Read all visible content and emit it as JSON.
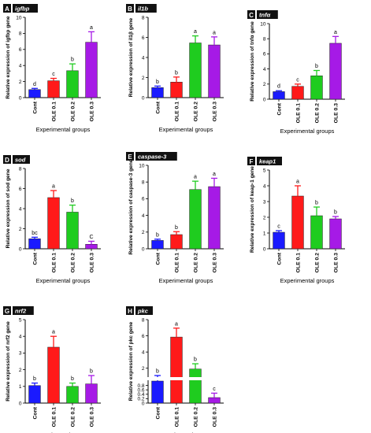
{
  "figure": {
    "common_xlabel": "Experimental groups"
  },
  "chart_data": [
    {
      "panel": "A",
      "gene_label": "igfbp",
      "type": "bar",
      "ylabel": "Relative expression of igfbp gene",
      "xlabel": "Experimental groups",
      "categories": [
        "Cont",
        "OLE 0.1",
        "OLE 0.2",
        "OLE 0.3"
      ],
      "values": [
        1.0,
        2.1,
        3.35,
        6.9
      ],
      "errors": [
        0.15,
        0.3,
        0.85,
        1.3
      ],
      "letters": [
        "d",
        "c",
        "b",
        "a"
      ],
      "ylim": [
        0,
        10
      ],
      "yticks": [
        0,
        2,
        4,
        6,
        8,
        10
      ],
      "colors": [
        "#1a1aff",
        "#ff1a1a",
        "#1fcc1f",
        "#a61ae6"
      ]
    },
    {
      "panel": "B",
      "gene_label": "il1b",
      "type": "bar",
      "ylabel": "Relative expression of il1β gene",
      "xlabel": "Experimental groups",
      "categories": [
        "Cont",
        "OLE 0.1",
        "OLE 0.2",
        "OLE 0.3"
      ],
      "values": [
        1.0,
        1.55,
        5.45,
        5.25
      ],
      "errors": [
        0.15,
        0.5,
        0.7,
        0.8
      ],
      "letters": [
        "b",
        "b",
        "a",
        "a"
      ],
      "ylim": [
        0,
        8
      ],
      "yticks": [
        0,
        2,
        4,
        6,
        8
      ],
      "colors": [
        "#1a1aff",
        "#ff1a1a",
        "#1fcc1f",
        "#a61ae6"
      ]
    },
    {
      "panel": "C",
      "gene_label": "tnfα",
      "type": "bar",
      "ylabel": "Relative expression of tnfα gene",
      "xlabel": "Experimental groups",
      "categories": [
        "Cont",
        "OLE 0.1",
        "OLE 0.2",
        "OLE 0.3"
      ],
      "values": [
        1.0,
        1.7,
        3.1,
        7.4
      ],
      "errors": [
        0.12,
        0.3,
        0.7,
        0.9
      ],
      "letters": [
        "d",
        "c",
        "b",
        "a"
      ],
      "ylim": [
        0,
        10
      ],
      "yticks": [
        0,
        2,
        4,
        6,
        8,
        10
      ],
      "colors": [
        "#1a1aff",
        "#ff1a1a",
        "#1fcc1f",
        "#a61ae6"
      ]
    },
    {
      "panel": "D",
      "gene_label": "sod",
      "type": "bar",
      "ylabel": "Relative expression of sod gene",
      "xlabel": "Experimental groups",
      "categories": [
        "Cont",
        "OLE 0.1",
        "OLE 0.2",
        "OLE 0.3"
      ],
      "values": [
        1.0,
        5.1,
        3.65,
        0.45
      ],
      "errors": [
        0.15,
        0.7,
        0.7,
        0.3
      ],
      "letters": [
        "bc",
        "a",
        "b",
        "C"
      ],
      "ylim": [
        0,
        8
      ],
      "yticks": [
        0,
        2,
        4,
        6,
        8
      ],
      "colors": [
        "#1a1aff",
        "#ff1a1a",
        "#1fcc1f",
        "#a61ae6"
      ]
    },
    {
      "panel": "E",
      "gene_label": "caspase-3",
      "type": "bar",
      "ylabel": "Relative expression of caspase-3 gene",
      "xlabel": "Experimental groups",
      "categories": [
        "Cont",
        "OLE 0.1",
        "OLE 0.2",
        "OLE 0.3"
      ],
      "values": [
        1.0,
        1.7,
        7.1,
        7.45
      ],
      "errors": [
        0.15,
        0.35,
        1.0,
        1.0
      ],
      "letters": [
        "b",
        "b",
        "a",
        "a"
      ],
      "ylim": [
        0,
        10
      ],
      "yticks": [
        0,
        2,
        4,
        6,
        8,
        10
      ],
      "colors": [
        "#1a1aff",
        "#ff1a1a",
        "#1fcc1f",
        "#a61ae6"
      ]
    },
    {
      "panel": "F",
      "gene_label": "keap1",
      "type": "bar",
      "ylabel": "Relative expression of keap-1 gene",
      "xlabel": "Experimental groups",
      "categories": [
        "Cont",
        "OLE 0.1",
        "OLE 0.2",
        "OLE 0.3"
      ],
      "values": [
        1.05,
        3.35,
        2.1,
        1.9
      ],
      "errors": [
        0.1,
        0.65,
        0.55,
        0.15
      ],
      "letters": [
        "c",
        "a",
        "b",
        "b"
      ],
      "ylim": [
        0,
        5
      ],
      "yticks": [
        0,
        1,
        2,
        3,
        4,
        5
      ],
      "colors": [
        "#1a1aff",
        "#ff1a1a",
        "#1fcc1f",
        "#a61ae6"
      ]
    },
    {
      "panel": "G",
      "gene_label": "nrf2",
      "type": "bar",
      "ylabel": "Relative expression of nrf2 gene",
      "xlabel": "Experimental groups",
      "categories": [
        "Cont",
        "OLE 0.1",
        "OLE 0.2",
        "OLE 0.3"
      ],
      "values": [
        1.05,
        3.35,
        1.0,
        1.15
      ],
      "errors": [
        0.15,
        0.65,
        0.2,
        0.5
      ],
      "letters": [
        "b",
        "a",
        "b",
        "b"
      ],
      "ylim": [
        0,
        5
      ],
      "yticks": [
        0,
        1,
        2,
        3,
        4,
        5
      ],
      "colors": [
        "#1a1aff",
        "#ff1a1a",
        "#1fcc1f",
        "#a61ae6"
      ]
    },
    {
      "panel": "H",
      "gene_label": "pkc",
      "type": "bar",
      "ylabel": "Relative expression of pkc gene",
      "xlabel": "Experimental groups",
      "categories": [
        "Cont",
        "OLE 0.1",
        "OLE 0.2",
        "OLE 0.3"
      ],
      "values": [
        1.0,
        5.85,
        1.9,
        0.25
      ],
      "errors": [
        0.1,
        1.1,
        0.65,
        0.2
      ],
      "letters": [
        "b",
        "a",
        "b",
        "c"
      ],
      "ylim": [
        0,
        8
      ],
      "yticks": [
        0,
        0.2,
        0.4,
        0.6,
        0.8,
        2,
        4,
        6,
        8
      ],
      "broken_axis": {
        "lower": [
          0,
          1
        ],
        "upper": [
          1,
          8
        ]
      },
      "colors": [
        "#1a1aff",
        "#ff1a1a",
        "#1fcc1f",
        "#a61ae6"
      ]
    }
  ]
}
